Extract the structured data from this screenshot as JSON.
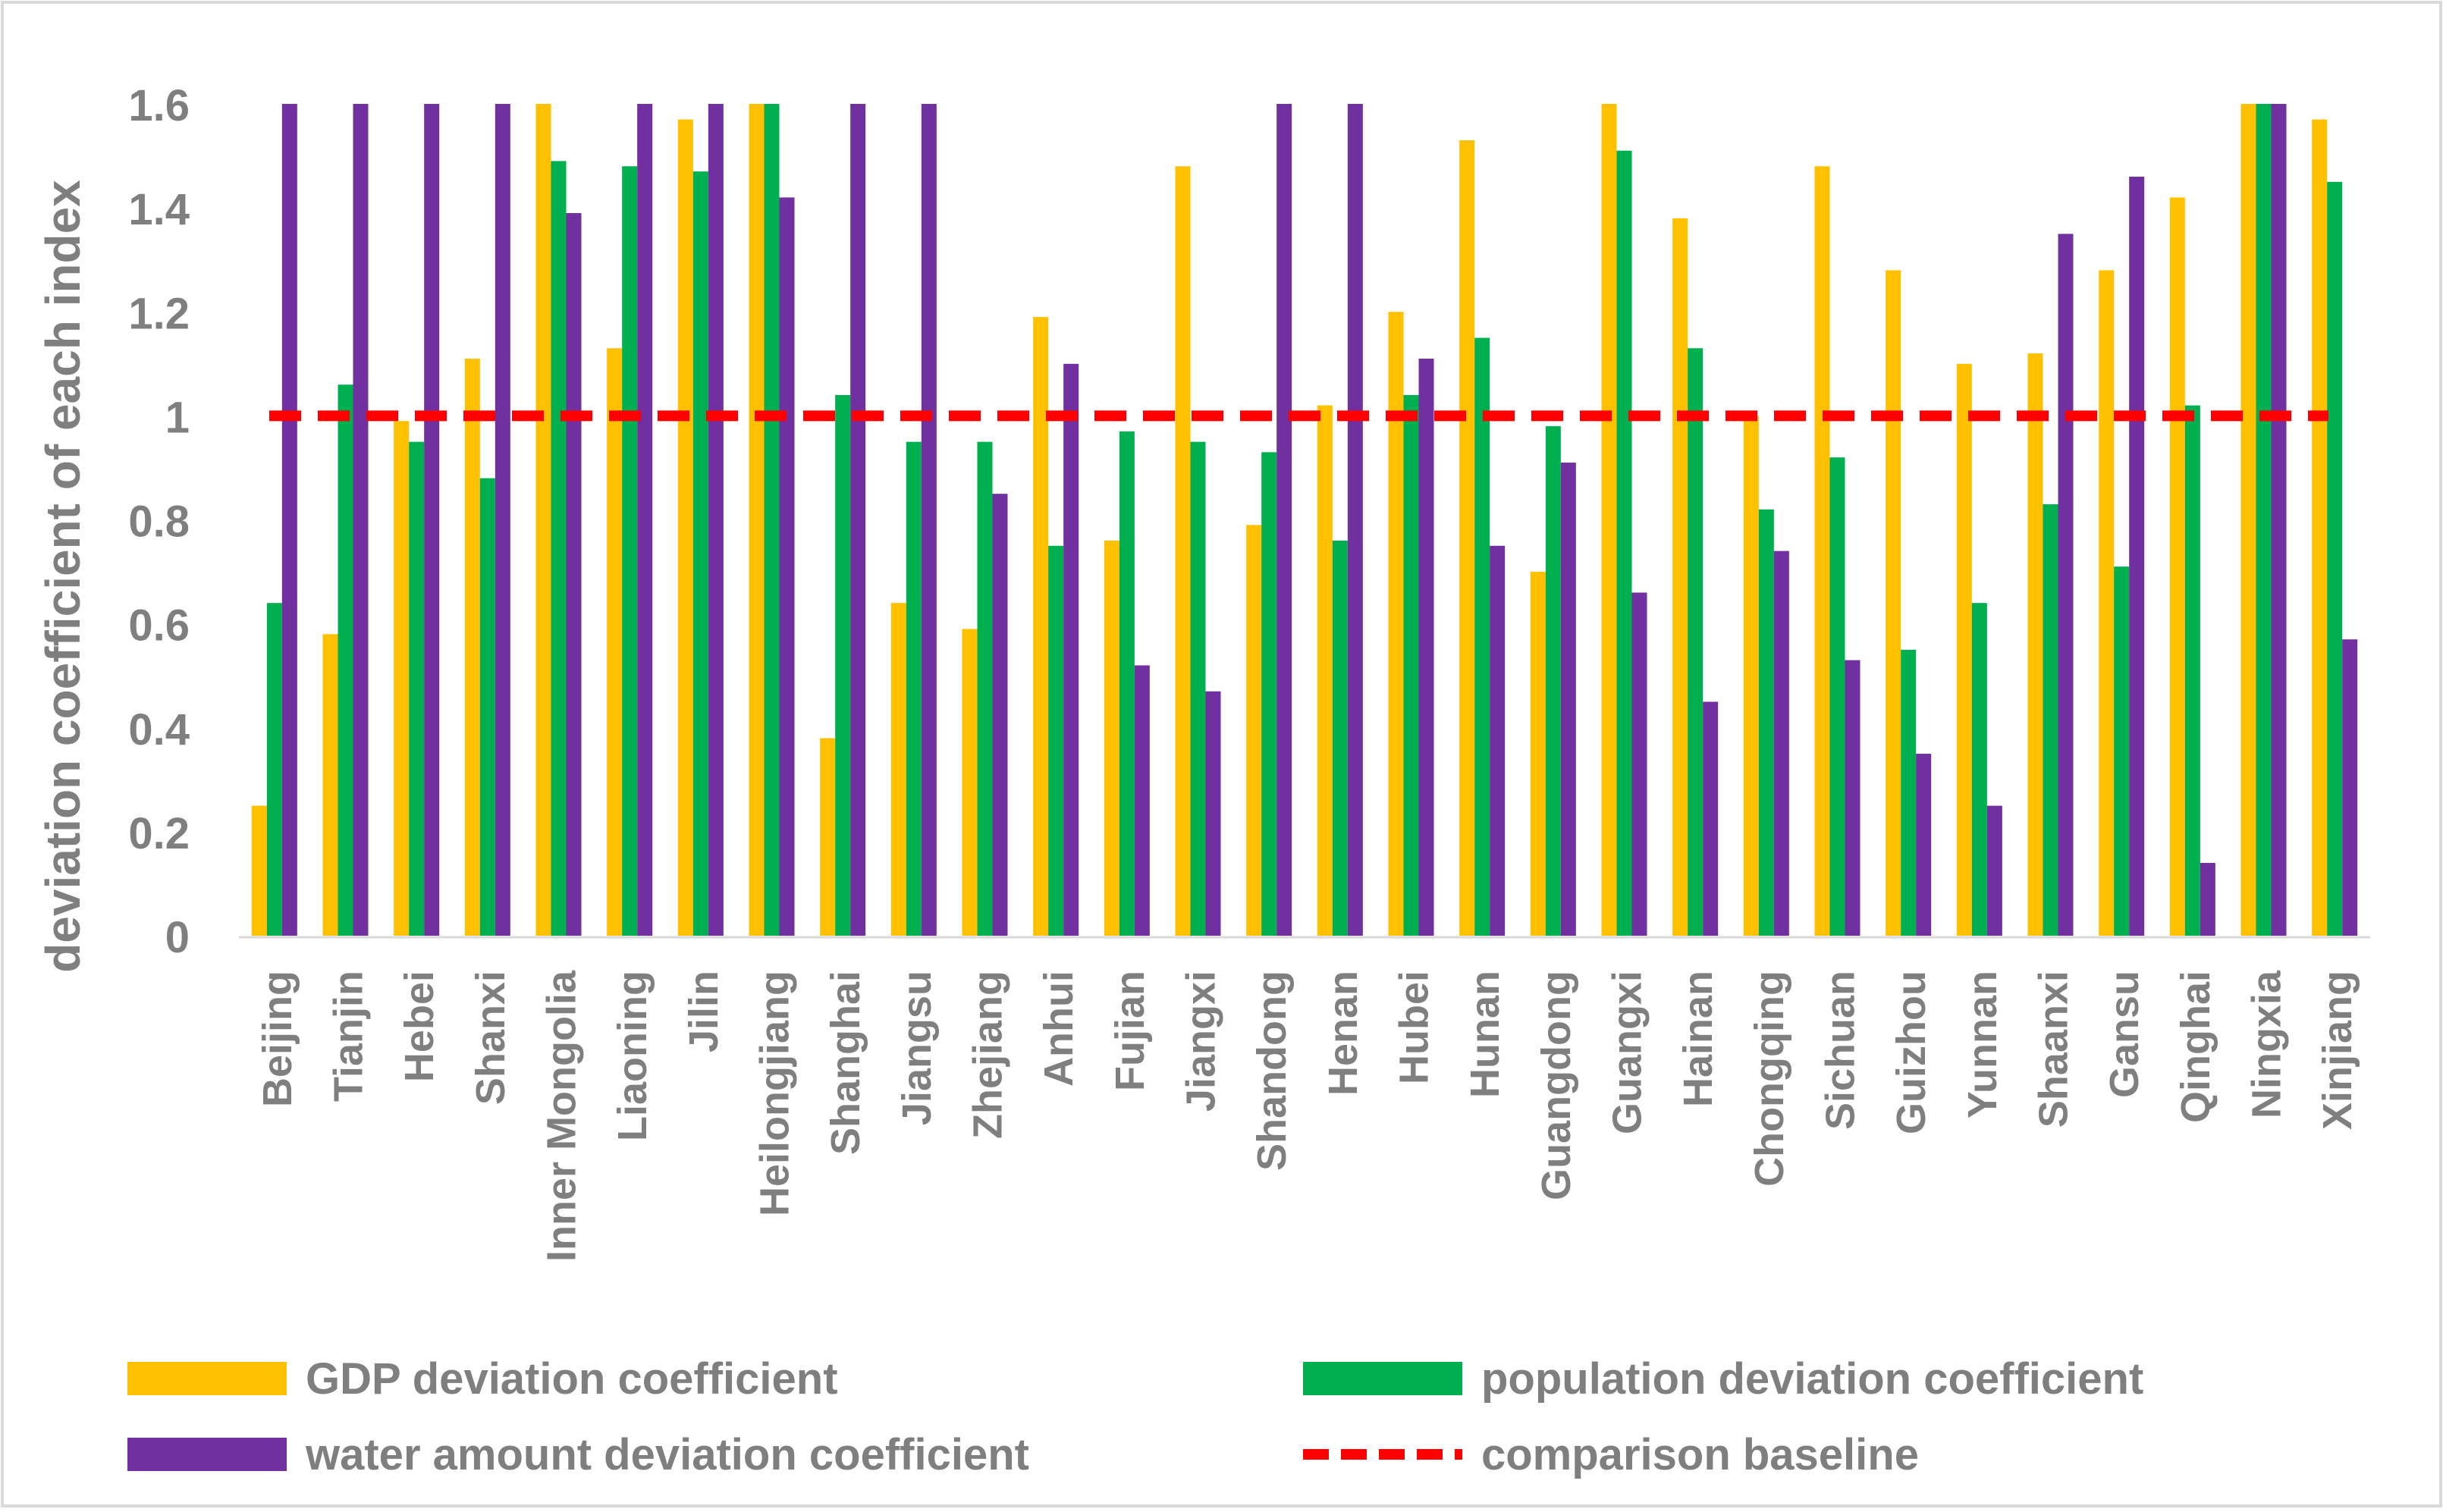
{
  "chart_data": {
    "type": "bar",
    "title": "",
    "xlabel": "",
    "ylabel": "deviation coefficient of each index",
    "ylim": [
      0,
      1.6
    ],
    "yticks": [
      0,
      0.2,
      0.4,
      0.6,
      0.8,
      1,
      1.2,
      1.4,
      1.6
    ],
    "ytick_labels": [
      "0",
      "0.2",
      "0.4",
      "0.6",
      "0.8",
      "1",
      "1.2",
      "1.4",
      "1.6"
    ],
    "grid": false,
    "legend_position": "bottom",
    "categories": [
      "Beijing",
      "Tianjin",
      "Hebei",
      "Shanxi",
      "Inner Mongolia",
      "Liaoning",
      "Jilin",
      "Heilongjiang",
      "Shanghai",
      "Jiangsu",
      "Zhejiang",
      "Anhui",
      "Fujian",
      "Jiangxi",
      "Shandong",
      "Henan",
      "Hubei",
      "Hunan",
      "Guangdong",
      "Guangxi",
      "Hainan",
      "Chongqing",
      "Sichuan",
      "Guizhou",
      "Yunnan",
      "Shaanxi",
      "Gansu",
      "Qinghai",
      "Ningxia",
      "Xinjiang"
    ],
    "series": [
      {
        "name": "GDP deviation coefficient",
        "color": "#FFC000",
        "values": [
          0.25,
          0.58,
          0.99,
          1.11,
          1.6,
          1.13,
          1.57,
          1.6,
          0.38,
          0.64,
          0.59,
          1.19,
          0.76,
          1.48,
          0.79,
          1.02,
          1.2,
          1.53,
          0.7,
          1.6,
          1.38,
          1.0,
          1.48,
          1.28,
          1.1,
          1.12,
          1.28,
          1.42,
          1.6,
          1.57
        ]
      },
      {
        "name": "population deviation coefficient",
        "color": "#00B050",
        "values": [
          0.64,
          1.06,
          0.95,
          0.88,
          1.49,
          1.48,
          1.47,
          1.6,
          1.04,
          0.95,
          0.95,
          0.75,
          0.97,
          0.95,
          0.93,
          0.76,
          1.04,
          1.15,
          0.98,
          1.51,
          1.13,
          0.82,
          0.92,
          0.55,
          0.64,
          0.83,
          0.71,
          1.02,
          1.6,
          1.45
        ]
      },
      {
        "name": "water amount deviation coefficient",
        "color": "#7030A0",
        "values": [
          1.6,
          1.6,
          1.6,
          1.6,
          1.39,
          1.6,
          1.6,
          1.42,
          1.6,
          1.6,
          0.85,
          1.1,
          0.52,
          0.47,
          1.6,
          1.6,
          1.11,
          0.75,
          0.91,
          0.66,
          0.45,
          0.74,
          0.53,
          0.35,
          0.25,
          1.35,
          1.46,
          0.14,
          1.6,
          0.57
        ]
      }
    ],
    "baseline": {
      "name": "comparison baseline",
      "value": 1.0,
      "color": "#FF0000"
    }
  }
}
